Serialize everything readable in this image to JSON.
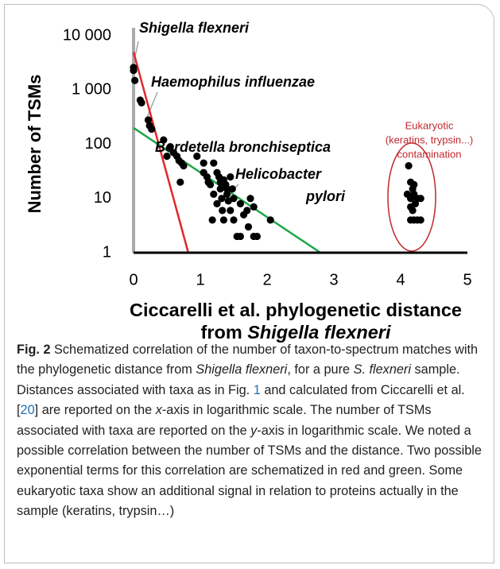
{
  "chart_data": {
    "type": "scatter",
    "ylabel": "Number of TSMs",
    "xlabel": {
      "line1": "Ciccarelli et al. phylogenetic distance",
      "line2": [
        "from ",
        "Shigella flexneri"
      ]
    },
    "xlim": [
      0,
      5
    ],
    "xticks": [
      0,
      1,
      2,
      3,
      4,
      5
    ],
    "ylim": [
      1,
      10000
    ],
    "log_y": true,
    "grid": false,
    "yticks": [
      1,
      10,
      100,
      {
        "value": 1000,
        "label": "1 000"
      },
      {
        "value": 10000,
        "label": "10 000"
      }
    ],
    "color": "#000000",
    "x": [
      0,
      0,
      0.02,
      0.1,
      0.12,
      0.22,
      0.24,
      0.27,
      0.45,
      0.5,
      0.55,
      0.6,
      0.65,
      0.68,
      0.7,
      0.72,
      0.75,
      0.95,
      1.05,
      1.05,
      1.1,
      1.12,
      1.15,
      1.18,
      1.2,
      1.2,
      1.25,
      1.25,
      1.28,
      1.3,
      1.3,
      1.32,
      1.33,
      1.35,
      1.35,
      1.38,
      1.4,
      1.4,
      1.42,
      1.45,
      1.45,
      1.48,
      1.5,
      1.5,
      1.55,
      1.6,
      1.6,
      1.65,
      1.7,
      1.72,
      1.75,
      1.8,
      1.8,
      1.85,
      2.05,
      4.1,
      4.12,
      4.15,
      4.15,
      4.15,
      4.15,
      4.18,
      4.18,
      4.2,
      4.2,
      4.2,
      4.22,
      4.25,
      4.25,
      4.3,
      4.3
    ],
    "y": [
      2600,
      2300,
      1500,
      650,
      580,
      280,
      220,
      190,
      120,
      60,
      90,
      70,
      60,
      50,
      20,
      45,
      40,
      60,
      30,
      45,
      25,
      20,
      18,
      4,
      45,
      12,
      30,
      8,
      25,
      20,
      15,
      10,
      6,
      4,
      22,
      18,
      12,
      15,
      9,
      25,
      6,
      15,
      10,
      4,
      2,
      2,
      8,
      5,
      6,
      3,
      10,
      2,
      7,
      2,
      4,
      12,
      40,
      20,
      10,
      7,
      4,
      15,
      6,
      12,
      18,
      4,
      8,
      4,
      10,
      4,
      10
    ],
    "lines": [
      {
        "color": "#e3262b",
        "x": [
          0,
          0.82
        ],
        "y": [
          5000,
          1
        ]
      },
      {
        "color": "#1fa64a",
        "x": [
          0,
          2.8
        ],
        "y": [
          200,
          1
        ]
      }
    ],
    "annotations": [
      {
        "lines": [
          "Shigella flexneri"
        ]
      },
      {
        "lines": [
          "Haemophilus influenzae"
        ]
      },
      {
        "lines": [
          "Bordetella bronchiseptica"
        ]
      },
      {
        "lines": [
          "Helicobacter",
          "pylori"
        ]
      },
      {
        "lines": [
          "Eukaryotic",
          "(keratins, trypsin...)",
          "contamination"
        ],
        "color": "#c0282d"
      }
    ]
  },
  "caption": {
    "label": "Fig. 2",
    "parts": [
      " Schematized correlation of the number of taxon-to-spectrum matches with the phylogenetic distance from ",
      {
        "text": "Shigella flexneri",
        "style": "italic"
      },
      ", for a pure ",
      {
        "text": "S. flexneri",
        "style": "italic"
      },
      " sample. Distances associated with taxa as in Fig. ",
      {
        "text": "1",
        "style": "link"
      },
      " and calculated from Ciccarelli et al. [",
      {
        "text": "20",
        "style": "link"
      },
      "] are reported on the ",
      {
        "text": "x",
        "style": "italic"
      },
      "-axis in logarithmic scale. The number of TSMs associated with taxa are reported on the ",
      {
        "text": "y",
        "style": "italic"
      },
      "-axis in logarithmic scale. We noted a possible correlation between the number of TSMs and the distance. Two possible exponential terms for this correlation are schematized in red and green. Some eukaryotic taxa show an additional signal in relation to proteins actually in the sample (keratins, trypsin…)"
    ]
  }
}
